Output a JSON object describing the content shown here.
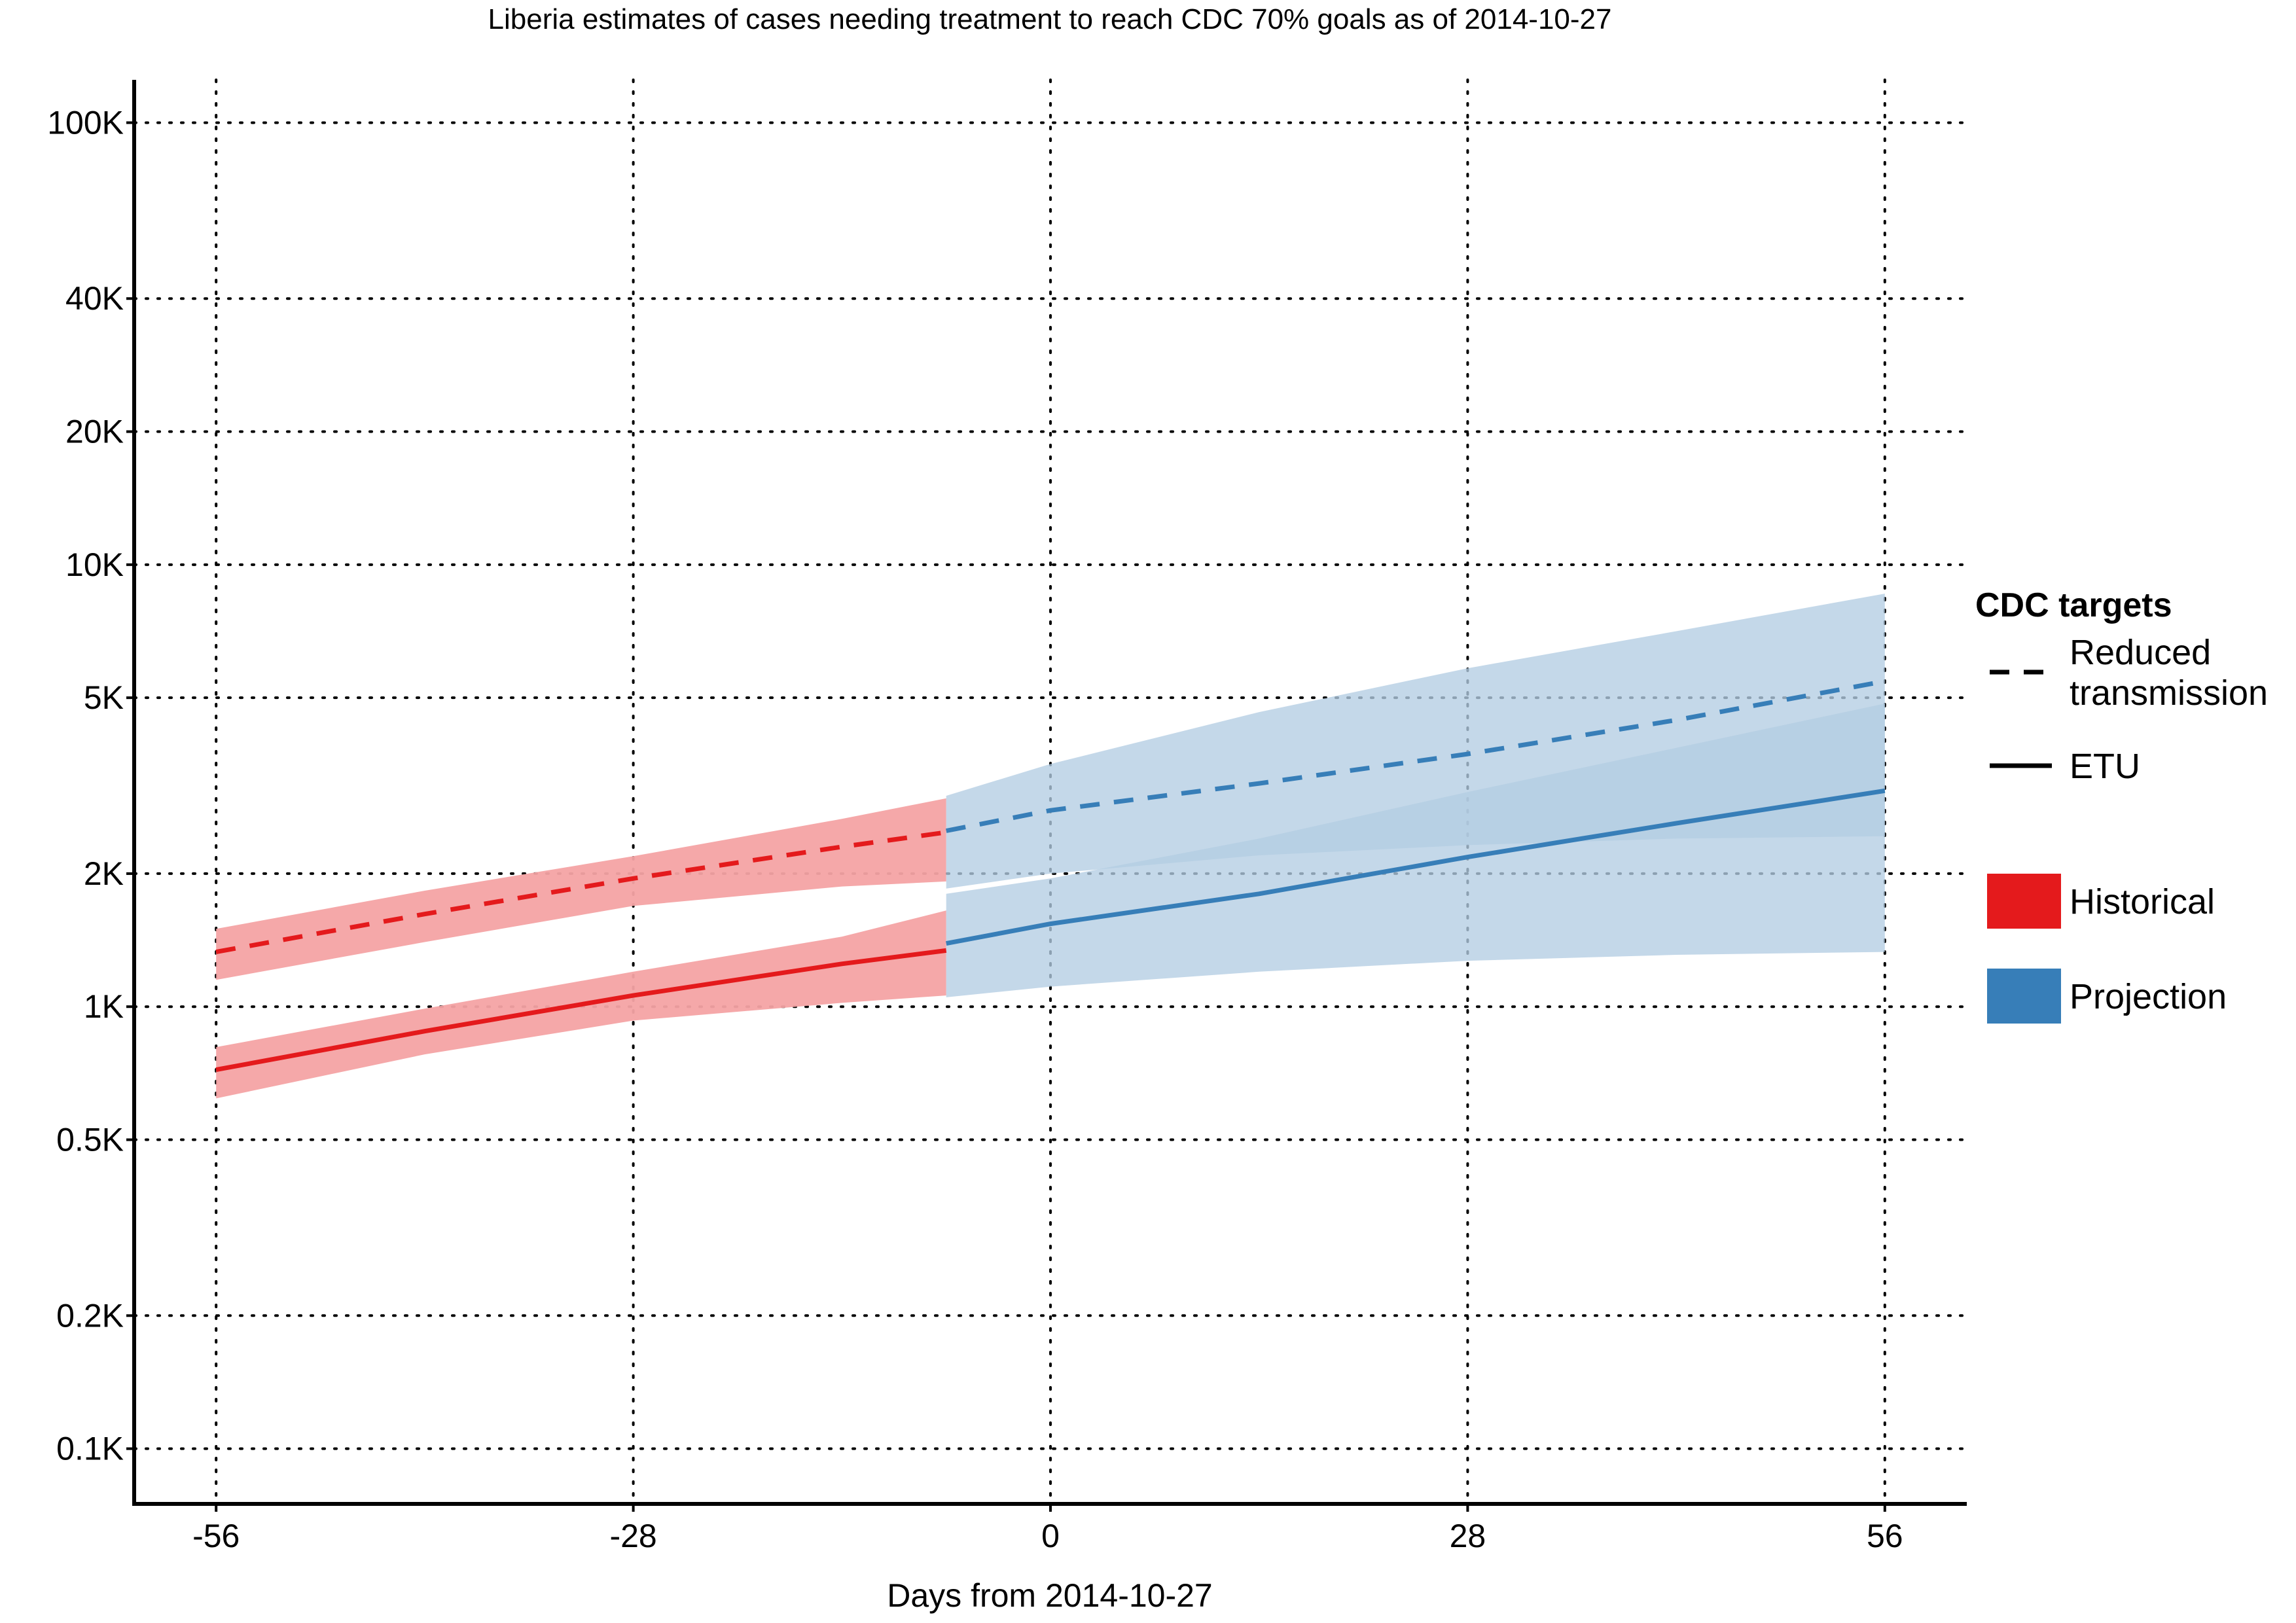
{
  "chart_data": {
    "type": "line",
    "title": "Liberia estimates of cases needing treatment to reach CDC 70% goals as of 2014-10-27",
    "xlabel": "Days from 2014-10-27",
    "ylabel": "",
    "x_ticks": [
      "-56",
      "-28",
      "0",
      "28",
      "56"
    ],
    "x_tick_values": [
      -56,
      -28,
      0,
      28,
      56
    ],
    "y_ticks": [
      "100K",
      "40K",
      "20K",
      "10K",
      "5K",
      "2K",
      "1K",
      "0.5K",
      "0.2K",
      "0.1K"
    ],
    "y_tick_values": [
      100000,
      40000,
      20000,
      10000,
      5000,
      2000,
      1000,
      500,
      200,
      100
    ],
    "y_scale": "log",
    "xlim": [
      -61.5,
      61.5
    ],
    "ylim": [
      75,
      125000
    ],
    "grid": true,
    "legend_placement": "right",
    "colors": {
      "historical": "#e41a1c",
      "historical_band": "#f4a3a4",
      "projection": "#377eb8",
      "projection_band": "#b3cde3",
      "projection_band_inner": "#7facd3"
    },
    "legend": {
      "linetype_title": "CDC targets",
      "linetypes": [
        {
          "label_lines": [
            "Reduced",
            "transmission"
          ],
          "style": "dashed"
        },
        {
          "label_lines": [
            "ETU"
          ],
          "style": "solid"
        }
      ],
      "fill_entries": [
        {
          "label": "Historical",
          "color": "#e41a1c"
        },
        {
          "label": "Projection",
          "color": "#377eb8"
        }
      ]
    },
    "series": [
      {
        "group": "Historical",
        "target": "Reduced transmission",
        "style": "dashed",
        "x": [
          -56,
          -42,
          -28,
          -14,
          -7
        ],
        "y": [
          1330,
          1620,
          1950,
          2300,
          2480
        ],
        "lower": [
          1150,
          1400,
          1690,
          1870,
          1920
        ],
        "upper": [
          1500,
          1830,
          2190,
          2660,
          2960
        ]
      },
      {
        "group": "Historical",
        "target": "ETU",
        "style": "solid",
        "x": [
          -56,
          -42,
          -28,
          -14,
          -7
        ],
        "y": [
          720,
          880,
          1060,
          1250,
          1340
        ],
        "lower": [
          620,
          780,
          930,
          1020,
          1060
        ],
        "upper": [
          810,
          990,
          1200,
          1440,
          1650
        ]
      },
      {
        "group": "Projection",
        "target": "Reduced transmission",
        "style": "dashed",
        "x": [
          -7,
          0,
          14,
          28,
          42,
          56
        ],
        "y": [
          2500,
          2780,
          3200,
          3730,
          4450,
          5450
        ],
        "lower": [
          1850,
          2000,
          2200,
          2320,
          2400,
          2430
        ],
        "upper": [
          3000,
          3540,
          4640,
          5830,
          7070,
          8600
        ]
      },
      {
        "group": "Projection",
        "target": "ETU",
        "style": "solid",
        "x": [
          -7,
          0,
          14,
          28,
          42,
          56
        ],
        "y": [
          1390,
          1540,
          1800,
          2180,
          2600,
          3080
        ],
        "lower": [
          1050,
          1110,
          1200,
          1270,
          1310,
          1330
        ],
        "upper": [
          1800,
          1950,
          2400,
          3060,
          3850,
          4850
        ]
      }
    ]
  }
}
